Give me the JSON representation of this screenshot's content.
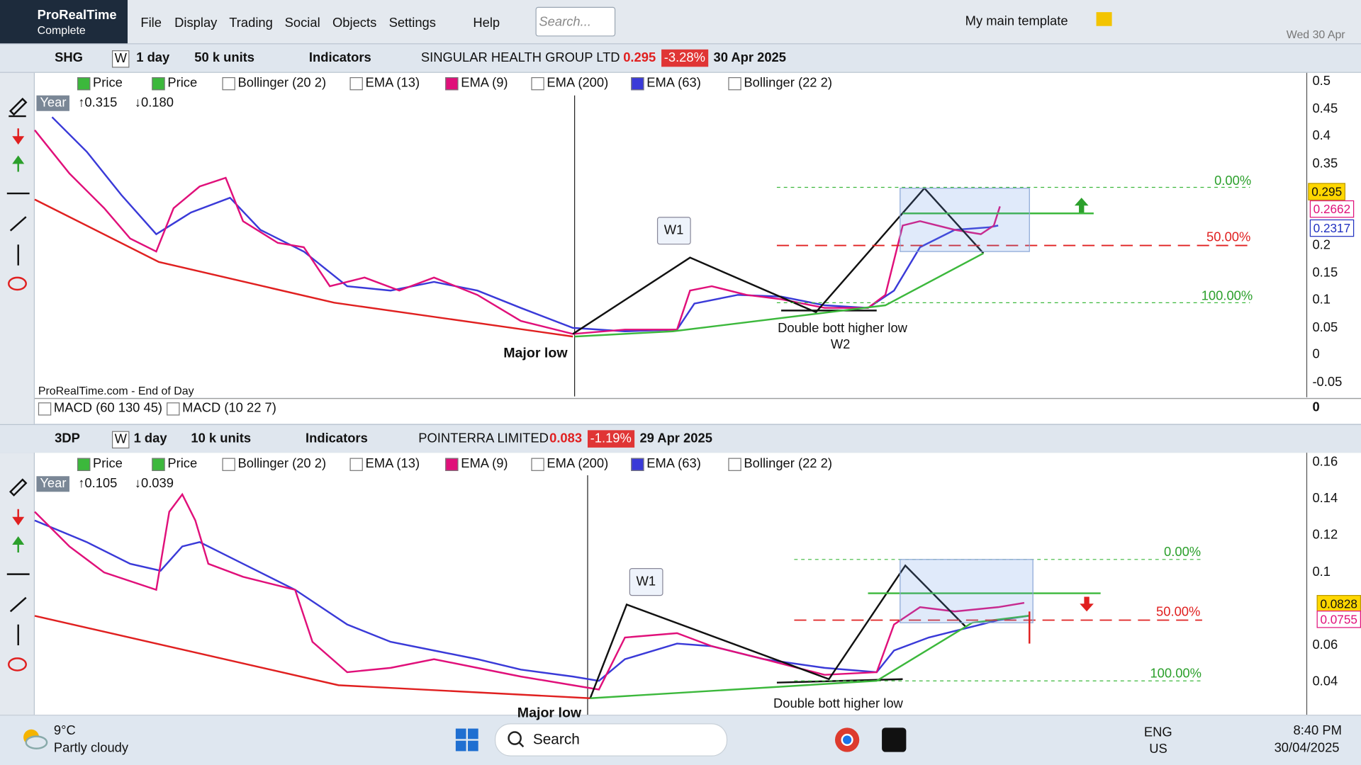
{
  "app": {
    "name": "ProRealTime",
    "edition": "Complete"
  },
  "menu": [
    "File",
    "Display",
    "Trading",
    "Social",
    "Objects",
    "Settings",
    "Help"
  ],
  "search_placeholder": "Search...",
  "template": "My main template",
  "date": "Wed 30 Apr",
  "panels": [
    {
      "symbol": "SHG",
      "period_key": "W",
      "period": "1 day",
      "units": "50 k units",
      "indicators_button": "Indicators",
      "name": "SINGULAR HEALTH GROUP LTD",
      "price": "0.295",
      "change": "-3.28%",
      "date": "30 Apr 2025",
      "legend": [
        "Price",
        "Price",
        "Bollinger (20 2)",
        "EMA (13)",
        "EMA (9)",
        "EMA (200)",
        "EMA (63)",
        "Bollinger (22 2)"
      ],
      "range": {
        "label": "Year",
        "high": "0.315",
        "low": "0.180"
      },
      "yticks": [
        "0.5",
        "0.45",
        "0.4",
        "0.35",
        "0.2",
        "0.15",
        "0.1",
        "0.05",
        "0",
        "-0.05"
      ],
      "price_labels": [
        "0.295",
        "0.2662",
        "0.2317"
      ],
      "fib": [
        "0.00%",
        "50.00%",
        "100.00%"
      ],
      "annotations": [
        "W1",
        "Major low",
        "Double bott higher low",
        "W2"
      ],
      "footer": "ProRealTime.com - End of Day",
      "sub_indicators": [
        "MACD (60 130 45)",
        "MACD (10 22 7)"
      ],
      "sub_tick": "0"
    },
    {
      "symbol": "3DP",
      "period_key": "W",
      "period": "1 day",
      "units": "10 k units",
      "indicators_button": "Indicators",
      "name": "POINTERRA LIMITED",
      "price": "0.083",
      "change": "-1.19%",
      "date": "29 Apr 2025",
      "legend": [
        "Price",
        "Price",
        "Bollinger (20 2)",
        "EMA (13)",
        "EMA (9)",
        "EMA (200)",
        "EMA (63)",
        "Bollinger (22 2)"
      ],
      "range": {
        "label": "Year",
        "high": "0.105",
        "low": "0.039"
      },
      "yticks": [
        "0.16",
        "0.14",
        "0.12",
        "0.1",
        "0.06",
        "0.04"
      ],
      "price_labels": [
        "0.0828",
        "0.0755"
      ],
      "fib": [
        "0.00%",
        "50.00%",
        "100.00%"
      ],
      "annotations": [
        "W1",
        "Major low",
        "Double bott higher low"
      ]
    }
  ],
  "taskbar": {
    "weather_temp": "9°C",
    "weather_desc": "Partly cloudy",
    "search": "Search",
    "lang": "ENG",
    "region": "US",
    "time": "8:40 PM",
    "date": "30/04/2025"
  }
}
